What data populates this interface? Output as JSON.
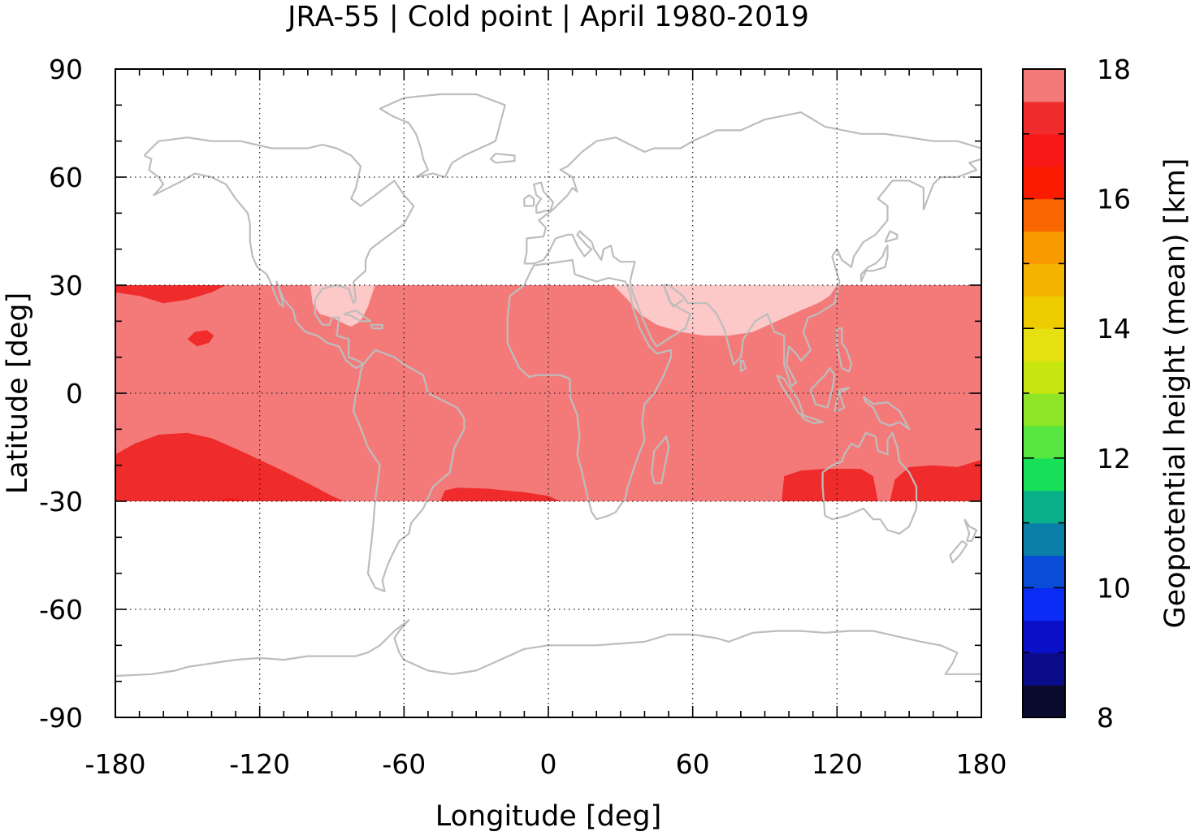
{
  "chart_data": {
    "type": "heatmap",
    "title": "JRA-55 | Cold point | April 1980-2019",
    "xlabel": "Longitude [deg]",
    "ylabel": "Latitude [deg]",
    "xlim": [
      -180,
      180
    ],
    "ylim": [
      -90,
      90
    ],
    "xticks": [
      -180,
      -120,
      -60,
      0,
      60,
      120,
      180
    ],
    "yticks": [
      90,
      60,
      30,
      0,
      -30,
      -60,
      -90
    ],
    "grid": true,
    "colorbar": {
      "label": "Geopotential height (mean) [km]",
      "range": [
        8,
        18
      ],
      "ticks": [
        18,
        16,
        14,
        12,
        10,
        8
      ],
      "step": 0.5,
      "colors": [
        "#0b0b2e",
        "#0a0c8a",
        "#0a10c8",
        "#0a2cf5",
        "#0a4cd8",
        "#0a7fa8",
        "#0ab08a",
        "#18df58",
        "#58e640",
        "#8ee626",
        "#c8e610",
        "#e6e010",
        "#efcc00",
        "#f5b400",
        "#f89a00",
        "#fa6600",
        "#fb1c00",
        "#f81818",
        "#ef2b2b",
        "#f47a7a",
        "#fcc8c8"
      ]
    },
    "levels_km": {
      "above_17_5": "#fcc8c8",
      "17_0_to_17_5": "#f47a7a",
      "16_5_to_17_0": "#ef2b2b",
      "16_0_to_16_5": "#f81818"
    },
    "data_extent": {
      "lat_min": -30,
      "lat_max": 30
    },
    "regions": [
      {
        "level": "17.0-17.5",
        "description_value": 17.25,
        "area": "tropical band -30..30 (background)"
      },
      {
        "level": ">17.5",
        "value": 17.75,
        "lon": [
          -100,
          -75
        ],
        "lat": [
          20,
          30
        ]
      },
      {
        "level": ">17.5",
        "value": 17.75,
        "lon": [
          30,
          120
        ],
        "lat": [
          15,
          30
        ]
      },
      {
        "level": "16.5-17.0",
        "value": 16.75,
        "lon": [
          -180,
          -130
        ],
        "lat": [
          25,
          30
        ]
      },
      {
        "level": "16.5-17.0",
        "value": 16.75,
        "lon": [
          -180,
          -85
        ],
        "lat": [
          -30,
          -10
        ]
      },
      {
        "level": "16.5-17.0",
        "value": 16.75,
        "lon": [
          -45,
          5
        ],
        "lat": [
          -30,
          -25
        ]
      },
      {
        "level": "16.5-17.0",
        "value": 16.75,
        "lon": [
          95,
          180
        ],
        "lat": [
          -30,
          -20
        ]
      }
    ],
    "continents_overlay_color": "#bdbdbd"
  }
}
